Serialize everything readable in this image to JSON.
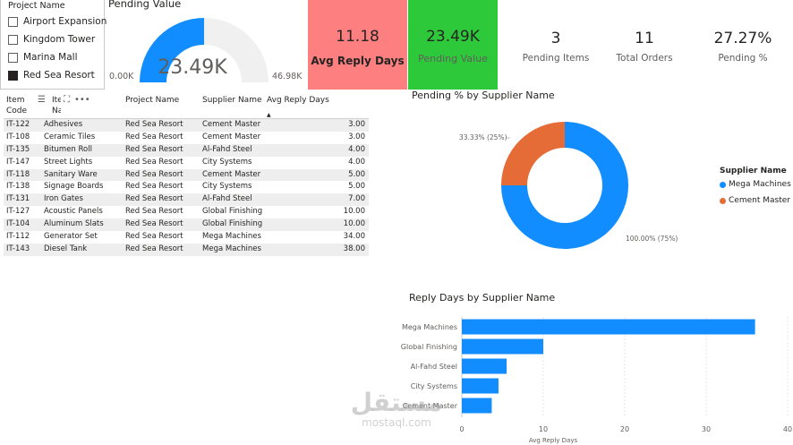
{
  "slicer": {
    "title": "Project Name",
    "items": [
      {
        "label": "Airport Expansion",
        "checked": false
      },
      {
        "label": "Kingdom Tower",
        "checked": false
      },
      {
        "label": "Marina Mall",
        "checked": false
      },
      {
        "label": "Red Sea Resort",
        "checked": true
      }
    ]
  },
  "gauge": {
    "title": "Pending Value",
    "value_label": "23.49K",
    "min_label": "0.00K",
    "max_label": "46.98K",
    "fraction": 0.5,
    "fill_color": "#118dff",
    "track_color": "#f0f0f0"
  },
  "cards": {
    "avg_reply": {
      "value": "11.18",
      "label": "Avg Reply Days",
      "color": "#fd7f7f"
    },
    "pending_value": {
      "value": "23.49K",
      "label": "Pending Value",
      "color": "#2dc93a"
    }
  },
  "kpis": [
    {
      "value": "3",
      "label": "Pending Items"
    },
    {
      "value": "11",
      "label": "Total Orders"
    },
    {
      "value": "27.27%",
      "label": "Pending %"
    }
  ],
  "table": {
    "headers": {
      "item_code": "Item Code",
      "item_name": "Item Name",
      "project": "Project Name",
      "supplier": "Supplier Name",
      "reply": "Avg Reply Days"
    },
    "tool_icons": [
      "filter-icon",
      "focus-mode-icon",
      "more-options-icon"
    ],
    "rows": [
      {
        "code": "IT-122",
        "name": "Adhesives",
        "project": "Red Sea Resort",
        "supplier": "Cement Master",
        "reply": "3.00"
      },
      {
        "code": "IT-108",
        "name": "Ceramic Tiles",
        "project": "Red Sea Resort",
        "supplier": "Cement Master",
        "reply": "3.00"
      },
      {
        "code": "IT-135",
        "name": "Bitumen Roll",
        "project": "Red Sea Resort",
        "supplier": "Al-Fahd Steel",
        "reply": "4.00"
      },
      {
        "code": "IT-147",
        "name": "Street Lights",
        "project": "Red Sea Resort",
        "supplier": "City Systems",
        "reply": "4.00"
      },
      {
        "code": "IT-118",
        "name": "Sanitary Ware",
        "project": "Red Sea Resort",
        "supplier": "Cement Master",
        "reply": "5.00"
      },
      {
        "code": "IT-138",
        "name": "Signage Boards",
        "project": "Red Sea Resort",
        "supplier": "City Systems",
        "reply": "5.00"
      },
      {
        "code": "IT-131",
        "name": "Iron Gates",
        "project": "Red Sea Resort",
        "supplier": "Al-Fahd Steel",
        "reply": "7.00"
      },
      {
        "code": "IT-127",
        "name": "Acoustic Panels",
        "project": "Red Sea Resort",
        "supplier": "Global Finishing",
        "reply": "10.00"
      },
      {
        "code": "IT-104",
        "name": "Aluminum Slats",
        "project": "Red Sea Resort",
        "supplier": "Global Finishing",
        "reply": "10.00"
      },
      {
        "code": "IT-112",
        "name": "Generator Set",
        "project": "Red Sea Resort",
        "supplier": "Mega Machines",
        "reply": "34.00"
      },
      {
        "code": "IT-143",
        "name": "Diesel Tank",
        "project": "Red Sea Resort",
        "supplier": "Mega Machines",
        "reply": "38.00"
      }
    ]
  },
  "chart_data": [
    {
      "type": "pie",
      "title": "Pending % by Supplier Name",
      "legend_title": "Supplier Name",
      "legend_position": "right",
      "categories": [
        "Mega Machines",
        "Cement Master"
      ],
      "values": [
        75,
        25
      ],
      "data_labels": [
        "100.00% (75%)",
        "33.33% (25%)"
      ],
      "colors": [
        "#118dff",
        "#e66c37"
      ]
    },
    {
      "type": "bar",
      "orientation": "horizontal",
      "title": "Reply Days by Supplier Name",
      "xlabel": "Avg Reply Days",
      "categories": [
        "Mega Machines",
        "Global Finishing",
        "Al-Fahd Steel",
        "City Systems",
        "Cement Master"
      ],
      "values": [
        36,
        10,
        5.5,
        4.5,
        3.67
      ],
      "xlim": [
        0,
        40
      ],
      "ticks": [
        "0",
        "10",
        "20",
        "30",
        "40"
      ],
      "grid": true,
      "color": "#118dff"
    }
  ],
  "watermark": {
    "arabic": "مستقل",
    "latin": "mostaql.com"
  }
}
